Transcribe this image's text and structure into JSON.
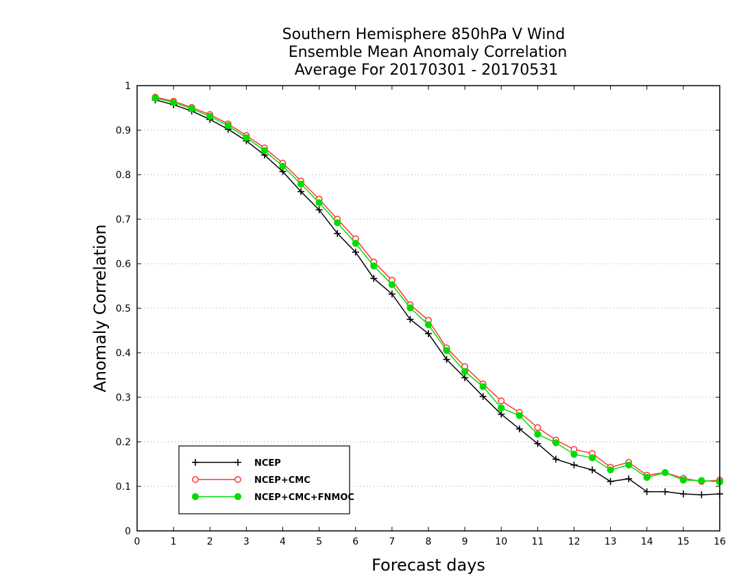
{
  "chart_data": {
    "type": "line",
    "title_lines": [
      "Southern Hemisphere 850hPa V Wind",
      "Ensemble Mean Anomaly Correlation",
      "Average For 20170301 - 20170531"
    ],
    "xlabel": "Forecast days",
    "ylabel": "Anomaly Correlation",
    "xlim": [
      0,
      16
    ],
    "ylim": [
      0,
      1
    ],
    "x_ticks": [
      0,
      1,
      2,
      3,
      4,
      5,
      6,
      7,
      8,
      9,
      10,
      11,
      12,
      13,
      14,
      15,
      16
    ],
    "y_ticks": [
      0,
      0.1,
      0.2,
      0.3,
      0.4,
      0.5,
      0.6,
      0.7,
      0.8,
      0.9,
      1
    ],
    "y_tick_labels": [
      "0",
      "0.1",
      "0.2",
      "0.3",
      "0.4",
      "0.5",
      "0.6",
      "0.7",
      "0.8",
      "0.9",
      "1"
    ],
    "grid": "horizontal dotted",
    "legend_position": "bottom-left",
    "x": [
      0.5,
      1,
      1.5,
      2,
      2.5,
      3,
      3.5,
      4,
      4.5,
      5,
      5.5,
      6,
      6.5,
      7,
      7.5,
      8,
      8.5,
      9,
      9.5,
      10,
      10.5,
      11,
      11.5,
      12,
      12.5,
      13,
      13.5,
      14,
      14.5,
      15,
      15.5,
      16
    ],
    "series": [
      {
        "name": "NCEP",
        "color": "#000000",
        "marker": "plus",
        "values": [
          0.968,
          0.957,
          0.943,
          0.924,
          0.902,
          0.876,
          0.844,
          0.807,
          0.762,
          0.721,
          0.668,
          0.626,
          0.567,
          0.532,
          0.475,
          0.443,
          0.385,
          0.344,
          0.302,
          0.262,
          0.229,
          0.196,
          0.161,
          0.148,
          0.137,
          0.111,
          0.117,
          0.088,
          0.088,
          0.083,
          0.081,
          0.083
        ]
      },
      {
        "name": "NCEP+CMC",
        "color": "#ff3333",
        "marker": "open-circle",
        "values": [
          0.974,
          0.965,
          0.951,
          0.935,
          0.914,
          0.888,
          0.86,
          0.826,
          0.786,
          0.745,
          0.7,
          0.656,
          0.604,
          0.563,
          0.508,
          0.473,
          0.411,
          0.369,
          0.33,
          0.292,
          0.266,
          0.232,
          0.204,
          0.183,
          0.174,
          0.143,
          0.154,
          0.125,
          0.131,
          0.118,
          0.111,
          0.114
        ]
      },
      {
        "name": "NCEP+CMC+FNMOC",
        "color": "#00dd00",
        "marker": "filled-circle",
        "values": [
          0.972,
          0.962,
          0.948,
          0.931,
          0.91,
          0.883,
          0.854,
          0.819,
          0.779,
          0.737,
          0.692,
          0.646,
          0.595,
          0.553,
          0.501,
          0.463,
          0.405,
          0.358,
          0.324,
          0.276,
          0.259,
          0.217,
          0.198,
          0.172,
          0.164,
          0.137,
          0.148,
          0.12,
          0.131,
          0.114,
          0.113,
          0.11
        ]
      }
    ]
  }
}
